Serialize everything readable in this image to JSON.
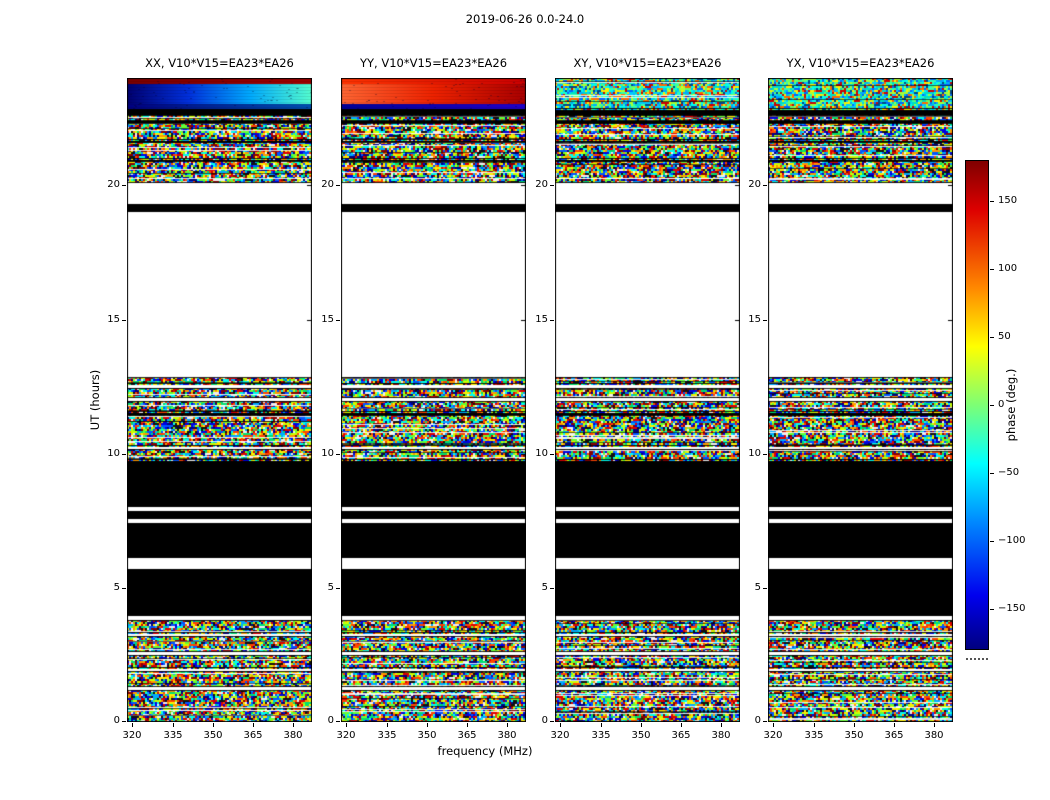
{
  "figure": {
    "title": "2019-06-26 0.0-24.0"
  },
  "axes": {
    "x_label": "frequency (MHz)",
    "y_label": "UT (hours)",
    "x_ticks": [
      320,
      335,
      350,
      365,
      380
    ],
    "y_ticks": [
      0,
      5,
      10,
      15,
      20
    ],
    "x_range": [
      318,
      387
    ],
    "y_range": [
      0,
      24
    ]
  },
  "panels": [
    {
      "title": "XX, V10*V15=EA23*EA26",
      "top_style": "xx"
    },
    {
      "title": "YY, V10*V15=EA23*EA26",
      "top_style": "yy"
    },
    {
      "title": "XY, V10*V15=EA23*EA26",
      "top_style": "teal"
    },
    {
      "title": "YX, V10*V15=EA23*EA26",
      "top_style": "teal"
    }
  ],
  "colorbar": {
    "label": "phase (deg.)",
    "tick_values": [
      150,
      100,
      50,
      0,
      -50,
      -100,
      -150
    ],
    "tick_labels": [
      "150",
      "100",
      "50",
      "0",
      "−50",
      "−100",
      "−150"
    ],
    "range": [
      -180,
      180
    ],
    "gradient": [
      {
        "c": "#800000",
        "p": 0
      },
      {
        "c": "#dd0000",
        "p": 10
      },
      {
        "c": "#ff8800",
        "p": 26
      },
      {
        "c": "#ffff00",
        "p": 38
      },
      {
        "c": "#7dff75",
        "p": 50
      },
      {
        "c": "#00ffff",
        "p": 62
      },
      {
        "c": "#0088ff",
        "p": 74
      },
      {
        "c": "#0000ee",
        "p": 89
      },
      {
        "c": "#000080",
        "p": 100
      }
    ]
  },
  "chart_data": {
    "type": "heatmap",
    "title": "2019-06-26 0.0-24.0",
    "xlabel": "frequency (MHz)",
    "ylabel": "UT (hours)",
    "xlim": [
      318,
      387
    ],
    "ylim": [
      0,
      24
    ],
    "x_ticks": [
      320,
      335,
      350,
      365,
      380
    ],
    "y_ticks": [
      0,
      5,
      10,
      15,
      20
    ],
    "colorbar": {
      "label": "phase (deg.)",
      "lim": [
        -180,
        180
      ],
      "cmap": "jet",
      "ticks": [
        150,
        100,
        50,
        0,
        -50,
        -100,
        -150
      ]
    },
    "panels": [
      "XX, V10*V15=EA23*EA26",
      "YY, V10*V15=EA23*EA26",
      "XY, V10*V15=EA23*EA26",
      "YX, V10*V15=EA23*EA26"
    ],
    "bands": [
      {
        "ut": [
          0,
          1.2
        ],
        "kind": "noise"
      },
      {
        "ut": [
          1.2,
          1.32
        ],
        "kind": "white"
      },
      {
        "ut": [
          1.32,
          1.9
        ],
        "kind": "noise"
      },
      {
        "ut": [
          1.9,
          2.02
        ],
        "kind": "white"
      },
      {
        "ut": [
          2.02,
          2.5
        ],
        "kind": "noise"
      },
      {
        "ut": [
          2.5,
          2.62
        ],
        "kind": "white"
      },
      {
        "ut": [
          2.62,
          3.2
        ],
        "kind": "noise"
      },
      {
        "ut": [
          3.2,
          3.32
        ],
        "kind": "white"
      },
      {
        "ut": [
          3.32,
          3.8
        ],
        "kind": "noise"
      },
      {
        "ut": [
          3.8,
          3.94
        ],
        "kind": "white"
      },
      {
        "ut": [
          3.94,
          5.72
        ],
        "kind": "black"
      },
      {
        "ut": [
          5.72,
          6.1
        ],
        "kind": "white"
      },
      {
        "ut": [
          6.1,
          7.42
        ],
        "kind": "black"
      },
      {
        "ut": [
          7.42,
          7.56
        ],
        "kind": "white"
      },
      {
        "ut": [
          7.56,
          7.88
        ],
        "kind": "black"
      },
      {
        "ut": [
          7.88,
          8.02
        ],
        "kind": "white"
      },
      {
        "ut": [
          8.02,
          9.78
        ],
        "kind": "black"
      },
      {
        "ut": [
          9.78,
          10.16
        ],
        "kind": "noise"
      },
      {
        "ut": [
          10.16,
          10.3
        ],
        "kind": "white"
      },
      {
        "ut": [
          10.3,
          11.44
        ],
        "kind": "noise"
      },
      {
        "ut": [
          11.44,
          11.56
        ],
        "kind": "black"
      },
      {
        "ut": [
          11.56,
          11.96
        ],
        "kind": "noise"
      },
      {
        "ut": [
          11.96,
          12.08
        ],
        "kind": "white"
      },
      {
        "ut": [
          12.08,
          12.46
        ],
        "kind": "noise"
      },
      {
        "ut": [
          12.46,
          12.58
        ],
        "kind": "white"
      },
      {
        "ut": [
          12.58,
          12.86
        ],
        "kind": "noise"
      },
      {
        "ut": [
          12.86,
          19.0
        ],
        "kind": "white"
      },
      {
        "ut": [
          19.0,
          19.3
        ],
        "kind": "black"
      },
      {
        "ut": [
          19.3,
          20.1
        ],
        "kind": "white"
      },
      {
        "ut": [
          20.1,
          20.92
        ],
        "kind": "noise"
      },
      {
        "ut": [
          20.92,
          21.0
        ],
        "kind": "black"
      },
      {
        "ut": [
          21.0,
          21.62
        ],
        "kind": "noise"
      },
      {
        "ut": [
          21.62,
          21.7
        ],
        "kind": "black"
      },
      {
        "ut": [
          21.7,
          22.32
        ],
        "kind": "noise"
      },
      {
        "ut": [
          22.32,
          22.4
        ],
        "kind": "black"
      },
      {
        "ut": [
          22.4,
          22.62
        ],
        "kind": "noise"
      },
      {
        "ut": [
          22.62,
          22.86
        ],
        "kind": "black"
      },
      {
        "ut": [
          22.86,
          24.0
        ],
        "kind": "top"
      }
    ],
    "top_styles": {
      "xx": [
        {
          "ut": [
            23.78,
            24.0
          ],
          "grad": [
            "#7a0000",
            "#a00000"
          ]
        },
        {
          "ut": [
            23.02,
            23.78
          ],
          "grad": [
            "#000070",
            "#0030dd",
            "#00aaff",
            "#55ffd0"
          ]
        },
        {
          "ut": [
            22.86,
            23.02
          ],
          "grad": [
            "#000080",
            "#0050b0"
          ]
        }
      ],
      "yy": [
        {
          "ut": [
            23.78,
            24.0
          ],
          "grad": [
            "#ff3300",
            "#cc0000"
          ]
        },
        {
          "ut": [
            23.02,
            23.78
          ],
          "grad": [
            "#ff6633",
            "#ee2200",
            "#aa0000"
          ]
        },
        {
          "ut": [
            22.86,
            23.02
          ],
          "grad": [
            "#000099",
            "#2200cc"
          ]
        }
      ],
      "teal": [
        {
          "ut": [
            22.86,
            24.0
          ],
          "noise": "teal"
        }
      ]
    },
    "palettes": {
      "main": [
        "#000080",
        "#0000e0",
        "#0055ff",
        "#00aaff",
        "#00ffee",
        "#00e070",
        "#66ff33",
        "#ccff00",
        "#ffee00",
        "#ff9900",
        "#ff4400",
        "#dd0000",
        "#880000",
        "#101010",
        "#f0f0f0"
      ],
      "teal": [
        "#00ccff",
        "#00ffee",
        "#33ffaa",
        "#66ff66",
        "#aaff33",
        "#00aaff",
        "#0066ff",
        "#ffee00",
        "#ff6600",
        "#cc0000",
        "#004488",
        "#00e0c0"
      ]
    }
  }
}
